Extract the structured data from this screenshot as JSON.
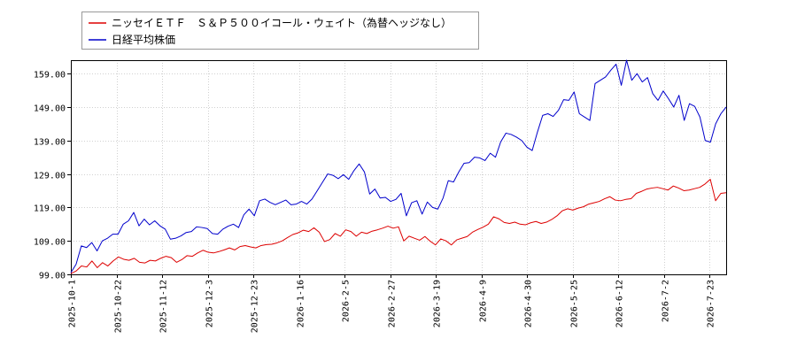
{
  "chart_data": {
    "type": "line",
    "grid": true,
    "legend_position": "top-left",
    "ylim": [
      99.0,
      163.0
    ],
    "y_ticks": [
      "99.00",
      "109.00",
      "119.00",
      "129.00",
      "139.00",
      "149.00",
      "159.00"
    ],
    "x_ticks": [
      "2025-10-1",
      "2025-10-22",
      "2025-11-12",
      "2025-12-3",
      "2025-12-23",
      "2026-1-16",
      "2026-2-5",
      "2026-2-27",
      "2026-3-19",
      "2026-4-9",
      "2026-4-30",
      "2026-5-25",
      "2026-6-12",
      "2026-7-2",
      "2026-7-23"
    ],
    "series": [
      {
        "name": "ニッセイＥＴＦ　Ｓ＆Ｐ５００イコール・ウェイト（為替ヘッジなし）",
        "color": "#dd0000",
        "values": [
          99.2,
          100.0,
          101.5,
          101.2,
          103.0,
          101.0,
          102.5,
          101.5,
          103.0,
          104.2,
          103.5,
          103.2,
          103.8,
          102.6,
          102.4,
          103.2,
          103.0,
          103.8,
          104.4,
          104.0,
          102.6,
          103.4,
          104.6,
          104.4,
          105.4,
          106.2,
          105.6,
          105.4,
          105.8,
          106.3,
          106.9,
          106.3,
          107.3,
          107.6,
          107.2,
          106.9,
          107.6,
          107.9,
          108.0,
          108.4,
          109.0,
          110.0,
          110.9,
          111.4,
          112.2,
          111.8,
          112.9,
          111.6,
          108.8,
          109.4,
          111.2,
          110.4,
          112.3,
          111.8,
          110.4,
          111.6,
          111.2,
          111.9,
          112.3,
          112.8,
          113.4,
          112.8,
          113.2,
          109.0,
          110.4,
          109.8,
          109.2,
          110.3,
          108.9,
          107.8,
          109.6,
          109.0,
          107.8,
          109.3,
          109.8,
          110.3,
          111.6,
          112.4,
          113.1,
          114.0,
          116.2,
          115.6,
          114.5,
          114.2,
          114.6,
          114.0,
          113.8,
          114.4,
          114.8,
          114.2,
          114.6,
          115.4,
          116.5,
          118.0,
          118.6,
          118.2,
          118.8,
          119.2,
          120.0,
          120.4,
          120.8,
          121.6,
          122.2,
          121.2,
          121.0,
          121.4,
          121.6,
          123.2,
          123.8,
          124.5,
          124.8,
          125.0,
          124.6,
          124.2,
          125.4,
          124.8,
          124.0,
          124.2,
          124.6,
          125.0,
          126.0,
          127.4,
          121.0,
          123.2,
          123.4
        ]
      },
      {
        "name": "日経平均株価",
        "color": "#0000cc",
        "values": [
          99.5,
          102.0,
          107.5,
          107.0,
          108.5,
          106.0,
          109.0,
          109.8,
          111.0,
          111.0,
          114.0,
          115.0,
          117.5,
          113.5,
          115.5,
          113.8,
          115.0,
          113.5,
          112.5,
          109.5,
          109.8,
          110.5,
          111.5,
          111.8,
          113.2,
          113.0,
          112.7,
          111.2,
          111.0,
          112.5,
          113.4,
          114.0,
          113.0,
          116.8,
          118.5,
          116.5,
          121.0,
          121.5,
          120.5,
          119.8,
          120.5,
          121.2,
          119.8,
          120.0,
          120.8,
          120.0,
          121.5,
          124.0,
          126.5,
          129.0,
          128.6,
          127.6,
          128.8,
          127.4,
          130.0,
          132.0,
          129.6,
          123.0,
          124.5,
          121.8,
          122.0,
          120.8,
          121.4,
          123.2,
          116.5,
          120.4,
          121.0,
          117.0,
          120.6,
          119.0,
          118.5,
          121.8,
          127.0,
          126.6,
          129.6,
          132.2,
          132.4,
          134.0,
          133.8,
          133.0,
          135.2,
          134.0,
          138.6,
          141.2,
          140.8,
          140.0,
          139.0,
          137.0,
          136.0,
          141.5,
          146.5,
          147.0,
          146.2,
          148.0,
          151.2,
          151.0,
          153.5,
          147.0,
          146.0,
          145.0,
          156.0,
          157.0,
          158.0,
          160.0,
          161.8,
          155.5,
          163.0,
          157.0,
          159.0,
          156.5,
          157.8,
          153.0,
          151.0,
          153.8,
          151.5,
          149.0,
          152.5,
          145.0,
          150.0,
          149.2,
          146.0,
          139.0,
          138.5,
          144.0,
          147.0,
          149.0
        ]
      }
    ]
  }
}
